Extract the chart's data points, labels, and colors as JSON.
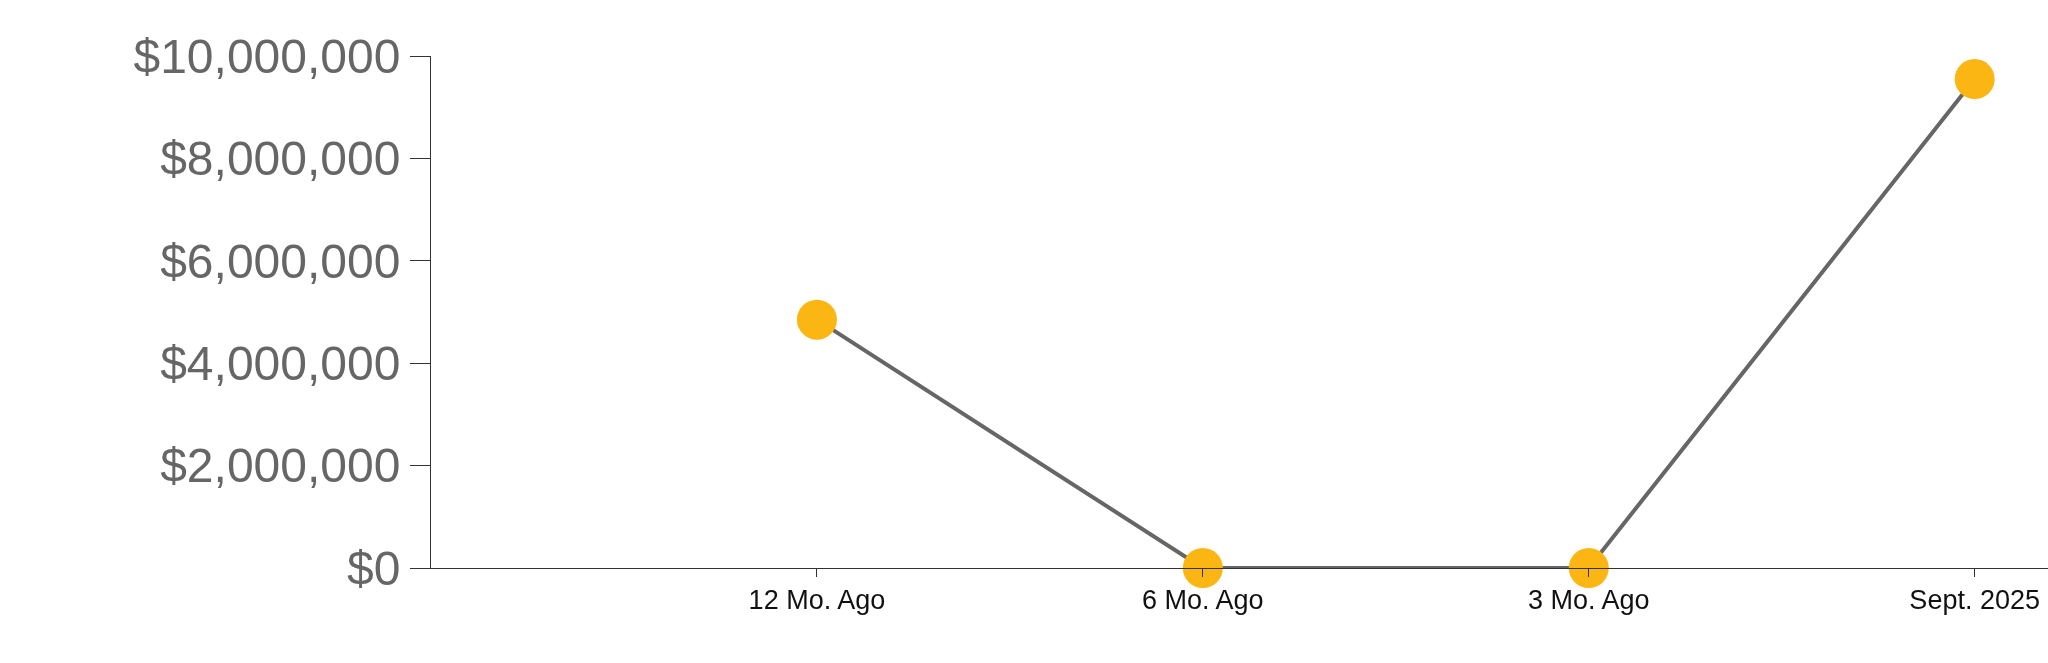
{
  "chart_data": {
    "type": "line",
    "categories": [
      "12 Mo. Ago",
      "6 Mo. Ago",
      "3 Mo. Ago",
      "Sept. 2025"
    ],
    "series": [
      {
        "color": "#666666",
        "colors": [
          "#fbb614",
          "#fbb614",
          "#fbb614",
          "#fbb614"
        ],
        "values": [
          4850000,
          0,
          0,
          9550000
        ]
      }
    ],
    "ylim": [
      0,
      10000000
    ],
    "yticks": [
      {
        "value": 0,
        "label": "$0"
      },
      {
        "value": 2000000,
        "label": "$2,000,000"
      },
      {
        "value": 4000000,
        "label": "$4,000,000"
      },
      {
        "value": 6000000,
        "label": "$6,000,000"
      },
      {
        "value": 8000000,
        "label": "$8,000,000"
      },
      {
        "value": 10000000,
        "label": "$10,000,000"
      }
    ],
    "marker": "circle",
    "line_style": "solid"
  }
}
